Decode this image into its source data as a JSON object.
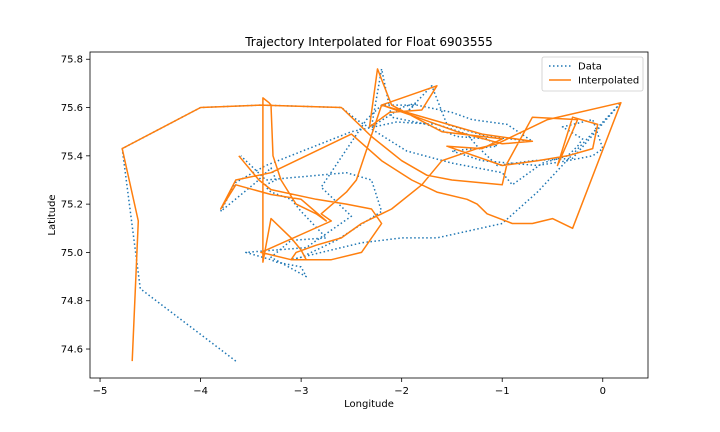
{
  "chart_data": {
    "type": "line",
    "title": "Trajectory Interpolated for Float 6903555",
    "xlabel": "Longitude",
    "ylabel": "Latitude",
    "xlim": [
      -5.1,
      0.45
    ],
    "ylim": [
      74.48,
      75.83
    ],
    "xticks": [
      -5,
      -4,
      -3,
      -2,
      -1,
      0
    ],
    "yticks": [
      74.6,
      74.8,
      75.0,
      75.2,
      75.4,
      75.6,
      75.8
    ],
    "xtick_labels": [
      "−5",
      "−4",
      "−3",
      "−2",
      "−1",
      "0"
    ],
    "ytick_labels": [
      "74.6",
      "74.8",
      "75.0",
      "75.2",
      "75.4",
      "75.6",
      "75.8"
    ],
    "grid": false,
    "legend_position": "top-right",
    "series": [
      {
        "name": "Data",
        "style": "dotted",
        "color": "#1f77b4",
        "x": [
          -3.65,
          -4.6,
          -4.78,
          -4.0,
          -3.4,
          -2.6,
          -2.45,
          -1.95,
          -1.5,
          -1.0,
          -0.9,
          -0.6,
          -0.35,
          -0.25,
          -0.2,
          -0.4,
          -0.1,
          0.0,
          -0.1,
          -0.35,
          -0.65,
          -1.2,
          -1.5,
          -1.05,
          -1.15,
          -1.45,
          -1.75,
          -2.1,
          -2.2,
          -2.3,
          -2.15,
          -2.0,
          -1.85,
          -1.95,
          -1.7,
          -1.55,
          -1.15,
          -0.7,
          -0.95,
          -1.3,
          -1.5,
          -1.85,
          -2.2,
          -2.35,
          -2.8,
          -2.5,
          -2.95,
          -3.55,
          -3.3,
          -3.25,
          -3.0,
          -2.95,
          -3.3,
          -3.1,
          -2.75,
          -3.0,
          -3.1,
          -3.3,
          -3.35,
          -3.35,
          -3.25,
          -3.3,
          -3.45,
          -3.8,
          -3.65,
          -3.35,
          -2.5,
          -2.05,
          -1.65,
          -1.35,
          -1.25,
          -1.05,
          -0.7,
          -0.3,
          0.18,
          -0.65,
          -1.0,
          -1.65,
          -2.0,
          -2.4,
          -2.7,
          -3.1,
          -3.0,
          -2.65,
          -2.2,
          -2.3,
          -2.55,
          -3.35,
          -3.6
        ],
        "y": [
          74.55,
          74.85,
          75.43,
          75.6,
          75.61,
          75.6,
          75.55,
          75.42,
          75.37,
          75.33,
          75.28,
          75.37,
          75.4,
          75.44,
          75.47,
          75.52,
          75.55,
          75.43,
          75.4,
          75.38,
          75.36,
          75.38,
          75.42,
          75.44,
          75.47,
          75.48,
          75.53,
          75.56,
          75.76,
          75.52,
          75.56,
          75.6,
          75.62,
          75.58,
          75.69,
          75.53,
          75.48,
          75.46,
          75.53,
          75.55,
          75.58,
          75.61,
          75.61,
          75.55,
          75.27,
          75.15,
          75.02,
          75.0,
          74.97,
          74.96,
          74.94,
          74.9,
          74.98,
          75.05,
          75.06,
          75.17,
          75.22,
          75.25,
          75.27,
          75.28,
          75.3,
          75.35,
          75.29,
          75.17,
          75.29,
          75.36,
          75.5,
          75.54,
          75.53,
          75.49,
          75.44,
          75.36,
          75.38,
          75.39,
          75.62,
          75.25,
          75.12,
          75.06,
          75.06,
          75.04,
          75.01,
          74.97,
          74.98,
          75.05,
          75.17,
          75.3,
          75.33,
          75.3,
          75.4
        ]
      },
      {
        "name": "Interpolated",
        "style": "solid",
        "color": "#ff7f0e",
        "x": [
          -4.68,
          -4.62,
          -4.78,
          -4.0,
          -3.4,
          -2.6,
          -2.3,
          -2.0,
          -1.75,
          -1.5,
          -1.0,
          -0.95,
          -0.7,
          -0.25,
          -0.45,
          -0.3,
          -0.05,
          -0.1,
          -0.35,
          -0.65,
          -1.0,
          -1.55,
          -1.2,
          -1.0,
          -1.6,
          -2.1,
          -2.24,
          -2.32,
          -2.12,
          -1.8,
          -1.65,
          -2.2,
          -1.95,
          -1.2,
          -0.7,
          -1.0,
          -1.45,
          -1.85,
          -2.2,
          -2.45,
          -2.55,
          -2.8,
          -2.7,
          -3.4,
          -3.1,
          -2.95,
          -3.0,
          -3.1,
          -3.3,
          -3.38,
          -3.38,
          -3.32,
          -3.3,
          -3.28,
          -3.2,
          -3.05,
          -2.85,
          -2.75,
          -3.0,
          -3.3,
          -3.65,
          -3.8,
          -3.65,
          -3.3,
          -2.5,
          -2.2,
          -1.9,
          -1.65,
          -1.35,
          -1.25,
          -1.15,
          -0.9,
          -0.7,
          -0.5,
          -0.3,
          0.18,
          -0.55,
          -1.05,
          -1.25,
          -1.6,
          -1.8,
          -2.1,
          -2.4,
          -2.6,
          -2.85,
          -3.05,
          -3.1,
          -2.7,
          -2.4,
          -2.2,
          -2.3,
          -2.55,
          -2.85,
          -3.3,
          -3.42,
          -3.62
        ],
        "y": [
          74.55,
          75.13,
          75.43,
          75.6,
          75.61,
          75.6,
          75.48,
          75.38,
          75.32,
          75.3,
          75.28,
          75.37,
          75.56,
          75.55,
          75.36,
          75.56,
          75.53,
          75.43,
          75.4,
          75.38,
          75.36,
          75.44,
          75.43,
          75.47,
          75.5,
          75.61,
          75.76,
          75.52,
          75.58,
          75.59,
          75.69,
          75.61,
          75.58,
          75.49,
          75.46,
          75.45,
          75.5,
          75.56,
          75.61,
          75.3,
          75.25,
          75.16,
          75.13,
          75.0,
          74.97,
          74.97,
          75.01,
          75.06,
          75.14,
          74.96,
          75.64,
          75.62,
          75.61,
          75.4,
          75.3,
          75.2,
          75.16,
          75.13,
          75.22,
          75.24,
          75.28,
          75.18,
          75.3,
          75.33,
          75.49,
          75.38,
          75.3,
          75.25,
          75.22,
          75.2,
          75.16,
          75.12,
          75.12,
          75.14,
          75.1,
          75.62,
          75.55,
          75.45,
          75.43,
          75.38,
          75.28,
          75.18,
          75.12,
          75.06,
          75.03,
          75.0,
          74.97,
          74.97,
          75.0,
          75.12,
          75.18,
          75.2,
          75.22,
          75.26,
          75.3,
          75.4
        ]
      }
    ]
  }
}
